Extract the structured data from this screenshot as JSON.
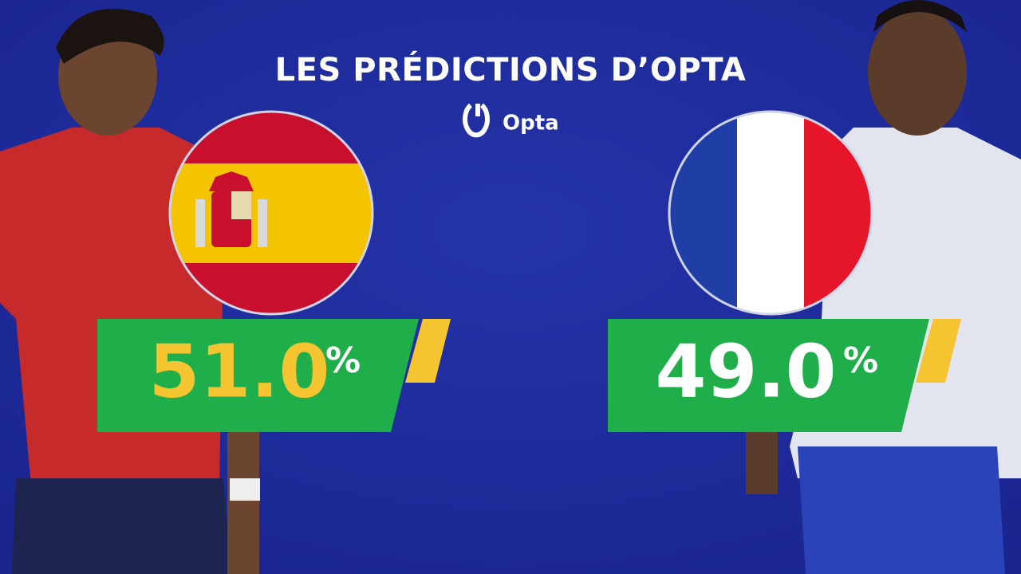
{
  "header": {
    "title": "LES PRÉDICTIONS D’OPTA",
    "brand": "Opta"
  },
  "predictions": [
    {
      "value": "51.0",
      "unit": "%"
    },
    {
      "value": "49.0",
      "unit": "%"
    }
  ]
}
